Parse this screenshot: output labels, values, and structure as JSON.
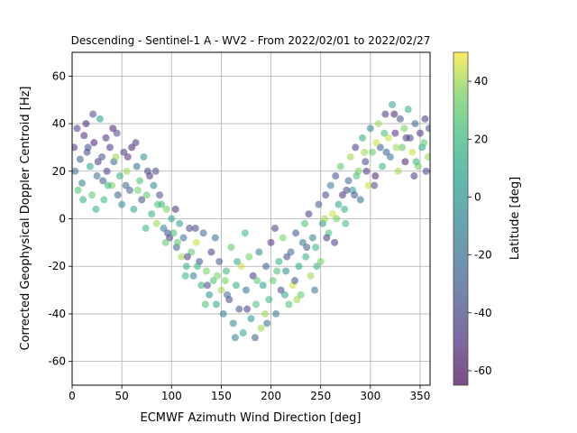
{
  "chart_data": {
    "type": "scatter",
    "title": "Descending - Sentinel-1 A - WV2 - From 2022/02/01 to 2022/02/27",
    "xlabel": "ECMWF Azimuth Wind Direction [deg]",
    "ylabel": "Corrected Geophysical Doppler Centroid [Hz]",
    "xlim": [
      0,
      360
    ],
    "ylim": [
      -70,
      70
    ],
    "xticks": [
      0,
      50,
      100,
      150,
      200,
      250,
      300,
      350
    ],
    "yticks": [
      -60,
      -40,
      -20,
      0,
      20,
      40,
      60
    ],
    "grid": true,
    "colorbar": {
      "label": "Latitude [deg]",
      "range": [
        -65,
        50
      ],
      "ticks": [
        -60,
        -40,
        -20,
        0,
        20,
        40
      ],
      "colormap": "viridis"
    },
    "point_alpha": 0.55,
    "points": [
      [
        5,
        38,
        -45
      ],
      [
        8,
        25,
        -30
      ],
      [
        10,
        15,
        -10
      ],
      [
        12,
        35,
        -50
      ],
      [
        15,
        28,
        -40
      ],
      [
        18,
        22,
        10
      ],
      [
        20,
        10,
        30
      ],
      [
        22,
        32,
        -55
      ],
      [
        25,
        18,
        -20
      ],
      [
        28,
        42,
        5
      ],
      [
        30,
        26,
        -35
      ],
      [
        32,
        8,
        20
      ],
      [
        35,
        20,
        -45
      ],
      [
        38,
        30,
        -50
      ],
      [
        40,
        14,
        35
      ],
      [
        42,
        24,
        -25
      ],
      [
        45,
        36,
        -40
      ],
      [
        48,
        18,
        15
      ],
      [
        50,
        6,
        -5
      ],
      [
        52,
        28,
        -45
      ],
      [
        55,
        20,
        40
      ],
      [
        58,
        12,
        -30
      ],
      [
        60,
        30,
        -55
      ],
      [
        62,
        4,
        10
      ],
      [
        65,
        22,
        -20
      ],
      [
        68,
        16,
        25
      ],
      [
        70,
        8,
        -40
      ],
      [
        72,
        26,
        0
      ],
      [
        75,
        10,
        30
      ],
      [
        78,
        18,
        -50
      ],
      [
        80,
        2,
        15
      ],
      [
        82,
        14,
        -10
      ],
      [
        85,
        -2,
        40
      ],
      [
        88,
        10,
        -35
      ],
      [
        90,
        6,
        20
      ],
      [
        92,
        -4,
        -15
      ],
      [
        95,
        4,
        35
      ],
      [
        98,
        -8,
        -45
      ],
      [
        100,
        0,
        10
      ],
      [
        102,
        -6,
        25
      ],
      [
        105,
        -12,
        -30
      ],
      [
        108,
        -2,
        5
      ],
      [
        110,
        -16,
        40
      ],
      [
        112,
        -8,
        -20
      ],
      [
        115,
        -20,
        15
      ],
      [
        118,
        -4,
        -40
      ],
      [
        120,
        -14,
        30
      ],
      [
        122,
        -24,
        -10
      ],
      [
        125,
        -10,
        45
      ],
      [
        128,
        -18,
        -35
      ],
      [
        130,
        -28,
        20
      ],
      [
        132,
        -6,
        -25
      ],
      [
        135,
        -22,
        35
      ],
      [
        138,
        -32,
        0
      ],
      [
        140,
        -14,
        -45
      ],
      [
        142,
        -26,
        25
      ],
      [
        145,
        -36,
        10
      ],
      [
        148,
        -18,
        -30
      ],
      [
        150,
        -30,
        40
      ],
      [
        152,
        -40,
        -15
      ],
      [
        155,
        -22,
        20
      ],
      [
        158,
        -34,
        -40
      ],
      [
        160,
        -12,
        30
      ],
      [
        162,
        -44,
        -5
      ],
      [
        165,
        -28,
        15
      ],
      [
        168,
        -38,
        -35
      ],
      [
        170,
        -20,
        45
      ],
      [
        172,
        -48,
        10
      ],
      [
        175,
        -30,
        -20
      ],
      [
        178,
        -16,
        35
      ],
      [
        180,
        -42,
        0
      ],
      [
        182,
        -24,
        -45
      ],
      [
        185,
        -36,
        25
      ],
      [
        188,
        -14,
        -10
      ],
      [
        190,
        -46,
        40
      ],
      [
        192,
        -28,
        5
      ],
      [
        195,
        -20,
        -30
      ],
      [
        198,
        -34,
        20
      ],
      [
        200,
        -10,
        -50
      ],
      [
        202,
        -26,
        30
      ],
      [
        205,
        -40,
        -15
      ],
      [
        208,
        -18,
        15
      ],
      [
        210,
        -30,
        -40
      ],
      [
        212,
        -8,
        35
      ],
      [
        215,
        -22,
        -5
      ],
      [
        218,
        -36,
        25
      ],
      [
        220,
        -14,
        -25
      ],
      [
        222,
        -28,
        45
      ],
      [
        225,
        -6,
        -35
      ],
      [
        228,
        -20,
        10
      ],
      [
        230,
        -32,
        30
      ],
      [
        232,
        -10,
        -20
      ],
      [
        235,
        -16,
        15
      ],
      [
        238,
        2,
        -45
      ],
      [
        240,
        -24,
        40
      ],
      [
        242,
        -8,
        -10
      ],
      [
        245,
        -12,
        20
      ],
      [
        248,
        6,
        -30
      ],
      [
        250,
        -18,
        35
      ],
      [
        252,
        -2,
        0
      ],
      [
        255,
        10,
        -40
      ],
      [
        258,
        -6,
        25
      ],
      [
        260,
        14,
        -15
      ],
      [
        262,
        2,
        45
      ],
      [
        265,
        18,
        -35
      ],
      [
        268,
        6,
        10
      ],
      [
        270,
        22,
        30
      ],
      [
        272,
        10,
        -50
      ],
      [
        275,
        -2,
        20
      ],
      [
        278,
        16,
        -25
      ],
      [
        280,
        26,
        40
      ],
      [
        282,
        12,
        5
      ],
      [
        285,
        30,
        -45
      ],
      [
        288,
        20,
        35
      ],
      [
        290,
        8,
        -20
      ],
      [
        292,
        34,
        15
      ],
      [
        295,
        24,
        -40
      ],
      [
        298,
        14,
        45
      ],
      [
        300,
        38,
        -10
      ],
      [
        302,
        28,
        30
      ],
      [
        305,
        18,
        -55
      ],
      [
        308,
        40,
        40
      ],
      [
        310,
        30,
        -30
      ],
      [
        312,
        22,
        20
      ],
      [
        315,
        44,
        -45
      ],
      [
        318,
        34,
        45
      ],
      [
        320,
        26,
        -20
      ],
      [
        322,
        48,
        10
      ],
      [
        325,
        36,
        -50
      ],
      [
        328,
        20,
        40
      ],
      [
        330,
        42,
        -35
      ],
      [
        332,
        30,
        30
      ],
      [
        335,
        24,
        -55
      ],
      [
        338,
        46,
        15
      ],
      [
        340,
        34,
        -40
      ],
      [
        342,
        28,
        45
      ],
      [
        345,
        40,
        -25
      ],
      [
        348,
        22,
        35
      ],
      [
        350,
        36,
        -50
      ],
      [
        352,
        30,
        10
      ],
      [
        355,
        42,
        -45
      ],
      [
        358,
        26,
        40
      ],
      [
        3,
        20,
        -20
      ],
      [
        6,
        12,
        25
      ],
      [
        14,
        40,
        -55
      ],
      [
        24,
        4,
        15
      ],
      [
        34,
        34,
        -50
      ],
      [
        44,
        26,
        40
      ],
      [
        54,
        14,
        -25
      ],
      [
        64,
        32,
        -45
      ],
      [
        74,
        -4,
        20
      ],
      [
        84,
        20,
        -40
      ],
      [
        94,
        -10,
        30
      ],
      [
        104,
        4,
        -50
      ],
      [
        114,
        -24,
        20
      ],
      [
        124,
        -4,
        -40
      ],
      [
        134,
        -36,
        25
      ],
      [
        144,
        -8,
        -20
      ],
      [
        154,
        -26,
        35
      ],
      [
        164,
        -50,
        -10
      ],
      [
        174,
        -6,
        20
      ],
      [
        184,
        -50,
        -30
      ],
      [
        194,
        -40,
        40
      ],
      [
        204,
        -4,
        -45
      ],
      [
        214,
        -32,
        10
      ],
      [
        224,
        -26,
        -35
      ],
      [
        234,
        -2,
        25
      ],
      [
        244,
        -30,
        -20
      ],
      [
        254,
        0,
        40
      ],
      [
        264,
        -10,
        -45
      ],
      [
        274,
        4,
        15
      ],
      [
        284,
        10,
        -35
      ],
      [
        294,
        28,
        40
      ],
      [
        304,
        14,
        -40
      ],
      [
        314,
        36,
        25
      ],
      [
        324,
        44,
        -55
      ],
      [
        334,
        38,
        35
      ],
      [
        344,
        18,
        -45
      ],
      [
        354,
        32,
        30
      ],
      [
        359,
        38,
        -35
      ],
      [
        16,
        30,
        -35
      ],
      [
        26,
        24,
        -45
      ],
      [
        36,
        14,
        20
      ],
      [
        46,
        10,
        -30
      ],
      [
        56,
        26,
        -50
      ],
      [
        66,
        12,
        35
      ],
      [
        76,
        20,
        -40
      ],
      [
        86,
        6,
        25
      ],
      [
        96,
        -6,
        -35
      ],
      [
        106,
        -10,
        30
      ],
      [
        116,
        -16,
        -45
      ],
      [
        126,
        -20,
        20
      ],
      [
        136,
        -28,
        -40
      ],
      [
        146,
        -24,
        35
      ],
      [
        156,
        -32,
        -25
      ],
      [
        166,
        -18,
        15
      ],
      [
        176,
        -38,
        -45
      ],
      [
        186,
        -26,
        30
      ],
      [
        196,
        -44,
        -20
      ],
      [
        206,
        -22,
        25
      ],
      [
        216,
        -16,
        -40
      ],
      [
        226,
        -34,
        40
      ],
      [
        236,
        -12,
        -30
      ],
      [
        246,
        -20,
        20
      ],
      [
        256,
        -8,
        -45
      ],
      [
        266,
        0,
        35
      ],
      [
        276,
        12,
        -40
      ],
      [
        286,
        18,
        25
      ],
      [
        296,
        20,
        -45
      ],
      [
        306,
        32,
        45
      ],
      [
        316,
        28,
        -30
      ],
      [
        326,
        30,
        40
      ],
      [
        336,
        34,
        -45
      ],
      [
        346,
        24,
        20
      ],
      [
        356,
        20,
        -40
      ],
      [
        2,
        30,
        -50
      ],
      [
        11,
        8,
        15
      ],
      [
        21,
        44,
        -40
      ],
      [
        31,
        16,
        -30
      ],
      [
        41,
        38,
        -55
      ]
    ]
  }
}
